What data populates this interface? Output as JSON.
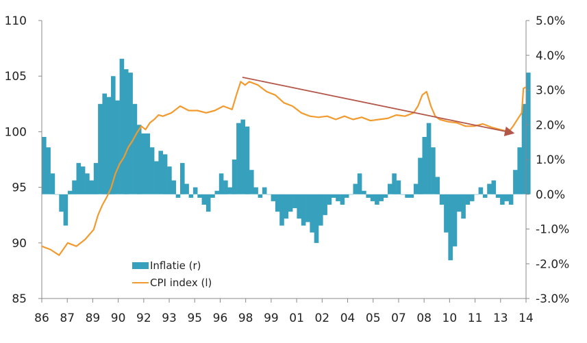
{
  "chart_data": {
    "type": "bar+line",
    "title": "",
    "xlabel": "",
    "ylabel_left": "",
    "ylabel_right": "",
    "x_range": [
      1986,
      2014
    ],
    "x_tick_labels": [
      "86",
      "87",
      "89",
      "90",
      "92",
      "93",
      "95",
      "96",
      "98",
      "99",
      "01",
      "02",
      "04",
      "05",
      "07",
      "08",
      "10",
      "11",
      "13",
      "14"
    ],
    "left_axis": {
      "range": [
        85,
        110
      ],
      "ticks": [
        "85",
        "90",
        "95",
        "100",
        "105",
        "110"
      ],
      "values": [
        85,
        90,
        95,
        100,
        105,
        110
      ]
    },
    "right_axis": {
      "range": [
        -3.0,
        5.0
      ],
      "ticks": [
        "-3.0%",
        "-2.0%",
        "-1.0%",
        "0.0%",
        "1.0%",
        "2.0%",
        "3.0%",
        "4.0%",
        "5.0%"
      ],
      "values": [
        -3,
        -2,
        -1,
        0,
        1,
        2,
        3,
        4,
        5
      ]
    },
    "legend": {
      "position": "bottom-left-inside",
      "entries": [
        "Inflatie (r)",
        "CPI index (l)"
      ]
    },
    "colors": {
      "bars": "#37a1bd",
      "line": "#f29a2e",
      "trend": "#b4574b",
      "axis": "#888888"
    },
    "series": [
      {
        "name": "Inflatie (r)",
        "type": "bar",
        "axis": "right",
        "unit": "%",
        "x_start": 1986.0,
        "x_step": 0.25,
        "values": [
          1.65,
          1.35,
          0.6,
          0,
          -0.5,
          -0.9,
          0.1,
          0.4,
          0.9,
          0.8,
          0.6,
          0.4,
          0.9,
          2.6,
          2.9,
          2.8,
          3.4,
          2.7,
          3.9,
          3.6,
          3.5,
          2.6,
          2.0,
          1.75,
          1.75,
          1.35,
          0.95,
          1.25,
          1.15,
          0.8,
          0.4,
          -0.1,
          0.9,
          0.3,
          -0.1,
          0.2,
          -0.1,
          -0.3,
          -0.5,
          -0.1,
          0.1,
          0.6,
          0.4,
          0.2,
          1.0,
          2.05,
          2.15,
          1.95,
          0.7,
          0.2,
          -0.1,
          0.2,
          0,
          -0.2,
          -0.5,
          -0.9,
          -0.7,
          -0.5,
          -0.4,
          -0.7,
          -0.9,
          -0.8,
          -1.1,
          -1.4,
          -0.9,
          -0.6,
          -0.3,
          -0.1,
          -0.2,
          -0.3,
          -0.1,
          0,
          0.3,
          0.6,
          0.1,
          -0.1,
          -0.2,
          -0.3,
          -0.2,
          -0.1,
          0.3,
          0.6,
          0.4,
          0,
          -0.1,
          -0.1,
          0.3,
          1.05,
          1.65,
          2.05,
          1.35,
          0.5,
          -0.3,
          -1.1,
          -1.9,
          -1.5,
          -0.5,
          -0.7,
          -0.3,
          -0.2,
          0,
          0.2,
          -0.1,
          0.3,
          0.4,
          -0.1,
          -0.3,
          -0.2,
          -0.3,
          0.7,
          1.35,
          2.6,
          3.5
        ]
      },
      {
        "name": "CPI index (l)",
        "type": "line",
        "axis": "left",
        "points": [
          [
            1986.0,
            89.7
          ],
          [
            1986.5,
            89.4
          ],
          [
            1987.0,
            88.9
          ],
          [
            1987.5,
            90.0
          ],
          [
            1988.0,
            89.7
          ],
          [
            1988.5,
            90.3
          ],
          [
            1989.0,
            91.2
          ],
          [
            1989.25,
            92.5
          ],
          [
            1989.5,
            93.4
          ],
          [
            1989.75,
            94.1
          ],
          [
            1990.0,
            94.9
          ],
          [
            1990.25,
            96.2
          ],
          [
            1990.5,
            97.1
          ],
          [
            1990.75,
            97.7
          ],
          [
            1991.0,
            98.6
          ],
          [
            1991.25,
            99.2
          ],
          [
            1991.5,
            99.9
          ],
          [
            1991.75,
            100.5
          ],
          [
            1992.0,
            100.2
          ],
          [
            1992.25,
            100.8
          ],
          [
            1992.5,
            101.1
          ],
          [
            1992.75,
            101.5
          ],
          [
            1993.0,
            101.4
          ],
          [
            1993.5,
            101.7
          ],
          [
            1994.0,
            102.3
          ],
          [
            1994.5,
            101.9
          ],
          [
            1995.0,
            101.9
          ],
          [
            1995.5,
            101.7
          ],
          [
            1996.0,
            101.9
          ],
          [
            1996.5,
            102.3
          ],
          [
            1997.0,
            102.0
          ],
          [
            1997.25,
            103.3
          ],
          [
            1997.5,
            104.5
          ],
          [
            1997.75,
            104.2
          ],
          [
            1998.0,
            104.5
          ],
          [
            1998.5,
            104.2
          ],
          [
            1999.0,
            103.6
          ],
          [
            1999.5,
            103.3
          ],
          [
            2000.0,
            102.6
          ],
          [
            2000.5,
            102.3
          ],
          [
            2001.0,
            101.7
          ],
          [
            2001.5,
            101.4
          ],
          [
            2002.0,
            101.3
          ],
          [
            2002.5,
            101.4
          ],
          [
            2003.0,
            101.1
          ],
          [
            2003.5,
            101.4
          ],
          [
            2004.0,
            101.1
          ],
          [
            2004.5,
            101.3
          ],
          [
            2005.0,
            101.0
          ],
          [
            2005.5,
            101.1
          ],
          [
            2006.0,
            101.2
          ],
          [
            2006.5,
            101.5
          ],
          [
            2007.0,
            101.4
          ],
          [
            2007.5,
            101.7
          ],
          [
            2007.75,
            102.3
          ],
          [
            2008.0,
            103.3
          ],
          [
            2008.25,
            103.6
          ],
          [
            2008.5,
            102.3
          ],
          [
            2008.75,
            101.4
          ],
          [
            2009.0,
            101.1
          ],
          [
            2009.5,
            100.9
          ],
          [
            2010.0,
            100.8
          ],
          [
            2010.5,
            100.5
          ],
          [
            2011.0,
            100.5
          ],
          [
            2011.5,
            100.7
          ],
          [
            2012.0,
            100.4
          ],
          [
            2012.5,
            100.2
          ],
          [
            2013.0,
            100.0
          ],
          [
            2013.25,
            100.5
          ],
          [
            2013.5,
            101.1
          ],
          [
            2013.75,
            101.7
          ],
          [
            2013.85,
            103.9
          ],
          [
            2014.0,
            104.0
          ]
        ]
      },
      {
        "name": "trend-arrow",
        "type": "line",
        "axis": "left",
        "points": [
          [
            1997.6,
            104.9
          ],
          [
            2013.2,
            99.9
          ]
        ]
      }
    ]
  }
}
